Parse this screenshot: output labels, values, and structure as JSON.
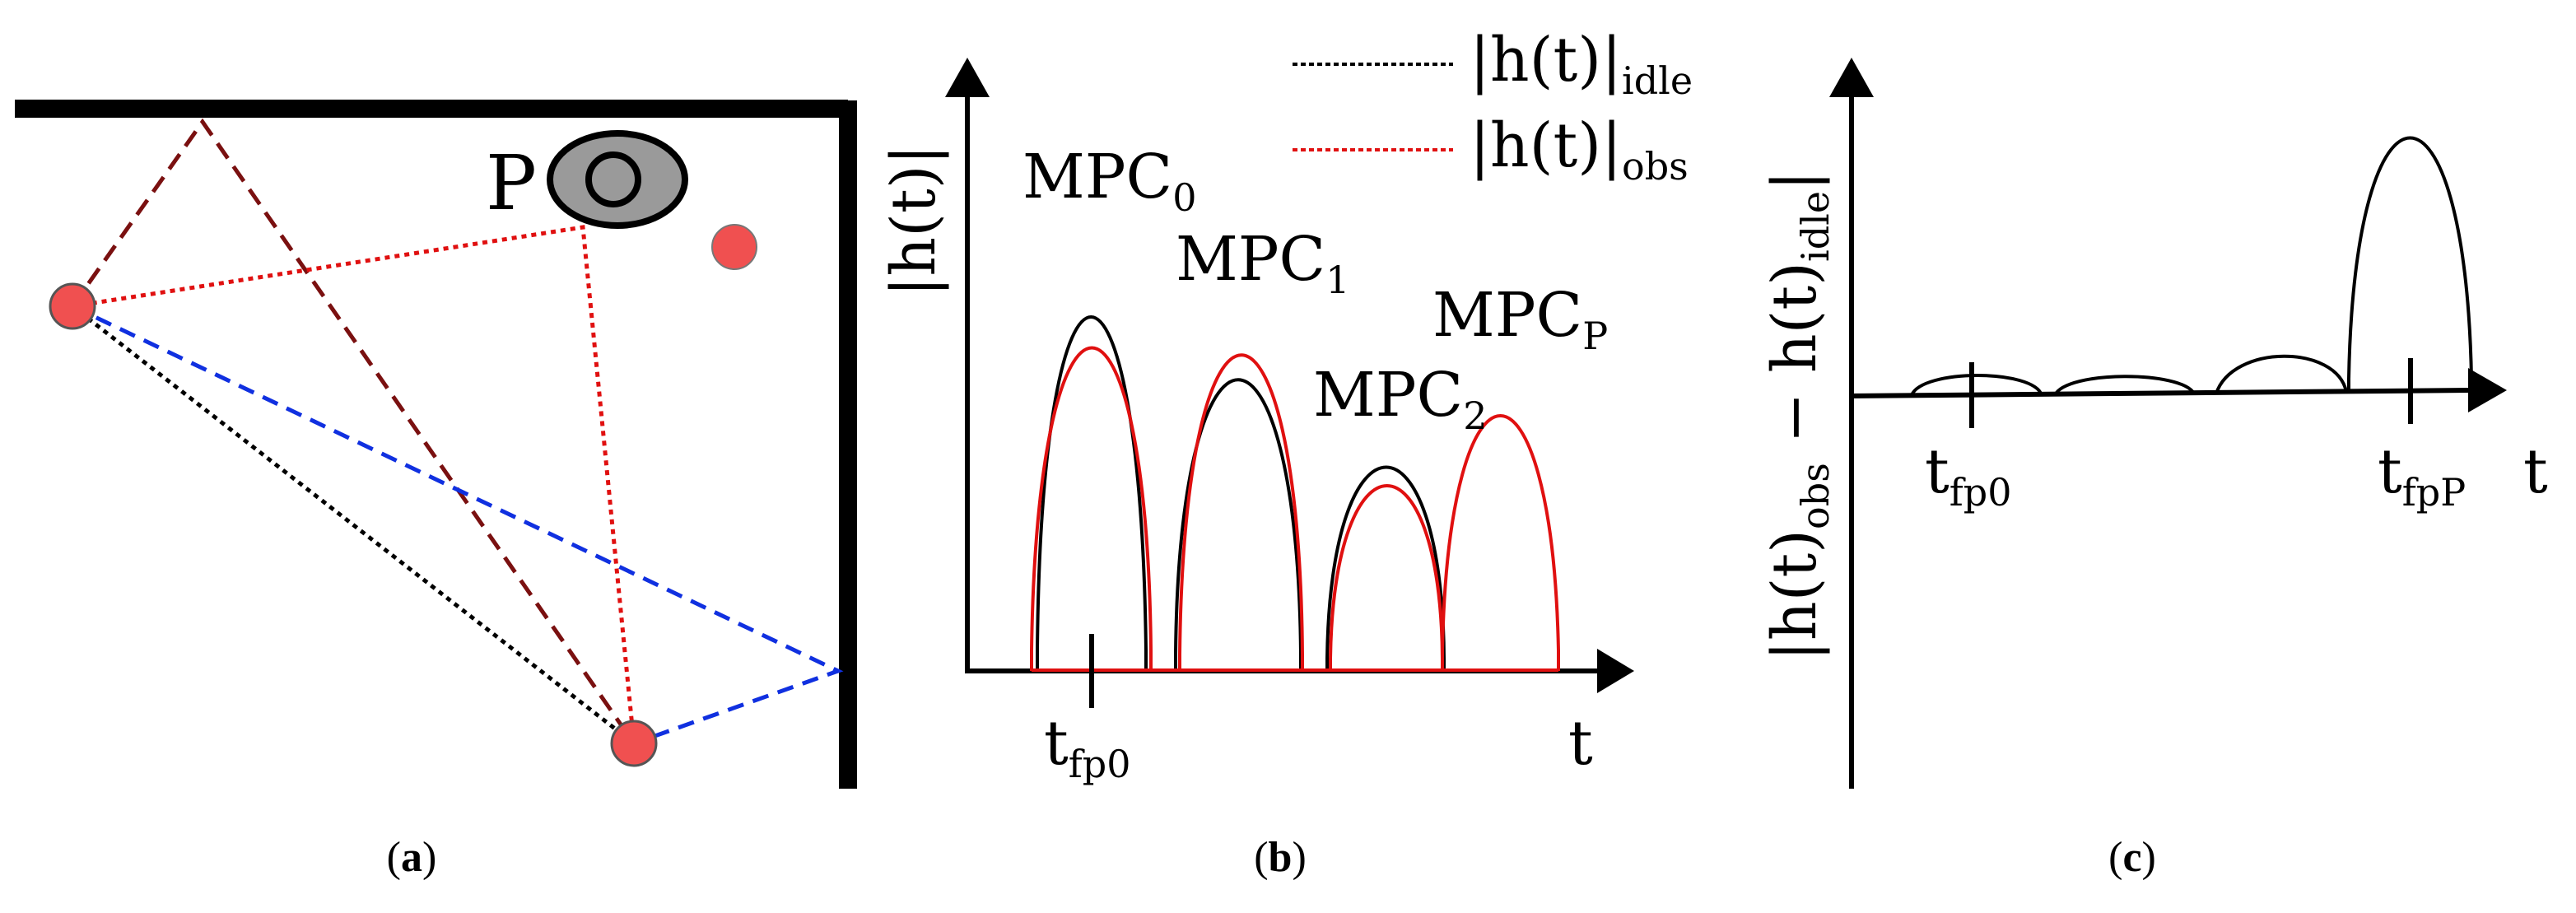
{
  "panel_a": {
    "person_label": "P",
    "caption_open": "(",
    "caption_letter": "a",
    "caption_close": ")"
  },
  "panel_b": {
    "y_axis_label": "|h(t)|",
    "x_axis_label": "t",
    "legend": [
      {
        "prefix": "|h(t)|",
        "subscript": "idle",
        "color": "#000000"
      },
      {
        "prefix": "|h(t)|",
        "subscript": "obs",
        "color": "#e01010"
      }
    ],
    "mpc_labels": [
      {
        "base": "MPC",
        "sub": "0"
      },
      {
        "base": "MPC",
        "sub": "1"
      },
      {
        "base": "MPC",
        "sub": "2"
      },
      {
        "base": "MPC",
        "sub": "P"
      }
    ],
    "tick_label": {
      "base": "t",
      "sub": "fp0"
    },
    "caption_open": "(",
    "caption_letter": "b",
    "caption_close": ")"
  },
  "panel_c": {
    "y_axis_label_a": "|h(t)",
    "y_axis_sub_a": "obs",
    "y_axis_mid": " − h(t)",
    "y_axis_sub_b": "idle",
    "y_axis_end": "|",
    "x_axis_label": "t",
    "tick_labels": [
      {
        "base": "t",
        "sub": "fp0"
      },
      {
        "base": "t",
        "sub": "fpP"
      }
    ],
    "caption_open": "(",
    "caption_letter": "c",
    "caption_close": ")"
  },
  "colors": {
    "obstacle_red": "#f05050",
    "idle_black": "#000000",
    "obs_red": "#e01010",
    "blue_path": "#1030e0",
    "maroon_path": "#7a1010",
    "person_gray": "#9a9a9a"
  }
}
